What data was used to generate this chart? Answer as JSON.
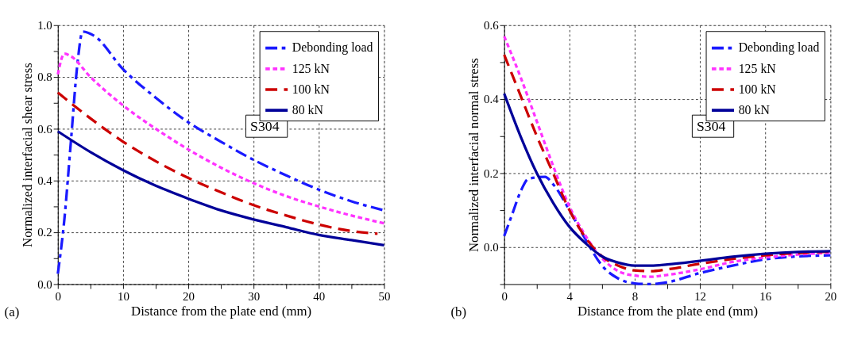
{
  "chart_data": [
    {
      "type": "line",
      "xlabel": "Distance from the plate end (mm)",
      "ylabel": "Normalized interfacial shear stress",
      "annotations": [
        "S304",
        "(a)"
      ],
      "xlim": [
        0,
        50
      ],
      "ylim": [
        0,
        1.0
      ],
      "xticks": [
        0,
        {
          "value": 5,
          "label": null
        },
        10,
        {
          "value": 15,
          "label": null
        },
        20,
        {
          "value": 25,
          "label": null
        },
        30,
        {
          "value": 35,
          "label": null
        },
        40,
        {
          "value": 45,
          "label": null
        },
        50
      ],
      "yticks": [
        {
          "value": 0,
          "label": "0.0"
        },
        {
          "value": 0.1,
          "label": null
        },
        0.2,
        {
          "value": 0.3,
          "label": null
        },
        0.4,
        {
          "value": 0.5,
          "label": null
        },
        0.6,
        {
          "value": 0.7,
          "label": null
        },
        0.8,
        {
          "value": 0.9,
          "label": null
        },
        {
          "value": 1.0,
          "label": "1.0"
        }
      ],
      "grid": true,
      "legend": "top right",
      "series": [
        {
          "name": "Debonding load",
          "color": "#1a1aff",
          "line_style": "dashdot",
          "x": [
            0,
            1,
            2,
            3,
            3.8,
            5.5,
            10,
            15,
            20,
            25,
            30,
            35,
            40,
            45,
            50
          ],
          "values": [
            0.04,
            0.25,
            0.55,
            0.85,
            0.975,
            0.96,
            0.83,
            0.72,
            0.625,
            0.55,
            0.48,
            0.42,
            0.365,
            0.32,
            0.285
          ]
        },
        {
          "name": "125 kN",
          "color": "#ff33ff",
          "line_style": "dotted",
          "x": [
            0,
            1,
            2,
            5,
            10,
            15,
            20,
            25,
            30,
            35,
            40,
            45,
            50
          ],
          "values": [
            0.81,
            0.89,
            0.88,
            0.8,
            0.69,
            0.6,
            0.52,
            0.45,
            0.39,
            0.34,
            0.3,
            0.265,
            0.235
          ]
        },
        {
          "name": "100 kN",
          "color": "#cc0000",
          "line_style": "dashed",
          "x": [
            0,
            5,
            10,
            15,
            20,
            25,
            30,
            35,
            40,
            45,
            49
          ],
          "values": [
            0.74,
            0.64,
            0.55,
            0.475,
            0.41,
            0.355,
            0.305,
            0.265,
            0.23,
            0.205,
            0.195
          ]
        },
        {
          "name": "80 kN",
          "color": "#000099",
          "line_style": "solid",
          "x": [
            0,
            5,
            10,
            15,
            20,
            25,
            30,
            35,
            40,
            45,
            50
          ],
          "values": [
            0.59,
            0.51,
            0.44,
            0.38,
            0.33,
            0.285,
            0.25,
            0.22,
            0.19,
            0.17,
            0.15
          ]
        }
      ]
    },
    {
      "type": "line",
      "xlabel": "Distance from the plate end (mm)",
      "ylabel": "Normalized interfacial normal stress",
      "annotations": [
        "S304",
        "(b)"
      ],
      "xlim": [
        0,
        20
      ],
      "ylim": [
        -0.1,
        0.6
      ],
      "xticks": [
        0,
        {
          "value": 2,
          "label": null
        },
        4,
        {
          "value": 6,
          "label": null
        },
        8,
        {
          "value": 10,
          "label": null
        },
        12,
        {
          "value": 14,
          "label": null
        },
        16,
        {
          "value": 18,
          "label": null
        },
        20
      ],
      "yticks": [
        {
          "value": -0.1,
          "label": null
        },
        {
          "value": 0,
          "label": "0.0"
        },
        {
          "value": 0.1,
          "label": null
        },
        0.2,
        {
          "value": 0.3,
          "label": null
        },
        0.4,
        {
          "value": 0.5,
          "label": null
        },
        0.6
      ],
      "grid": true,
      "legend": "top right",
      "series": [
        {
          "name": "Debonding load",
          "color": "#1a1aff",
          "line_style": "dashdot",
          "x": [
            0,
            0.5,
            1,
            1.5,
            2.5,
            3,
            4,
            5,
            6,
            7,
            8,
            9,
            10,
            12,
            14,
            16,
            18,
            20
          ],
          "values": [
            0.03,
            0.09,
            0.15,
            0.185,
            0.19,
            0.17,
            0.1,
            0.02,
            -0.05,
            -0.085,
            -0.098,
            -0.1,
            -0.095,
            -0.07,
            -0.05,
            -0.033,
            -0.025,
            -0.022
          ]
        },
        {
          "name": "125 kN",
          "color": "#ff33ff",
          "line_style": "dotted",
          "x": [
            0,
            1,
            2,
            3,
            4,
            5,
            6,
            7,
            8,
            9,
            10,
            12,
            14,
            16,
            18,
            20
          ],
          "values": [
            0.57,
            0.46,
            0.34,
            0.22,
            0.11,
            0.03,
            -0.03,
            -0.065,
            -0.077,
            -0.08,
            -0.075,
            -0.06,
            -0.04,
            -0.028,
            -0.02,
            -0.015
          ]
        },
        {
          "name": "100 kN",
          "color": "#cc0000",
          "line_style": "dashed",
          "x": [
            0,
            1,
            2,
            3,
            4,
            5,
            6,
            7,
            8,
            9,
            10,
            12,
            14,
            16,
            18,
            20
          ],
          "values": [
            0.52,
            0.41,
            0.3,
            0.2,
            0.1,
            0.025,
            -0.025,
            -0.05,
            -0.063,
            -0.065,
            -0.06,
            -0.045,
            -0.032,
            -0.022,
            -0.016,
            -0.012
          ]
        },
        {
          "name": "80 kN",
          "color": "#000099",
          "line_style": "solid",
          "x": [
            0,
            1,
            2,
            3,
            4,
            5,
            6,
            7,
            8,
            9,
            10,
            12,
            14,
            16,
            18,
            20
          ],
          "values": [
            0.415,
            0.3,
            0.2,
            0.12,
            0.055,
            0.01,
            -0.025,
            -0.042,
            -0.05,
            -0.05,
            -0.047,
            -0.037,
            -0.026,
            -0.018,
            -0.013,
            -0.011
          ]
        }
      ]
    }
  ]
}
